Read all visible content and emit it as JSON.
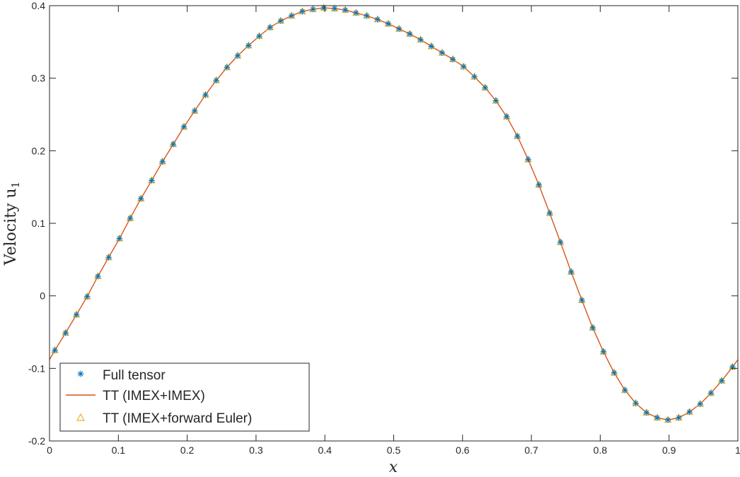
{
  "chart_data": {
    "type": "line",
    "xlabel": "x",
    "ylabel_main": "Velocity u",
    "ylabel_sub": "1",
    "xlim": [
      0,
      1
    ],
    "ylim": [
      -0.2,
      0.4
    ],
    "x_ticks": [
      0,
      0.1,
      0.2,
      0.3,
      0.4,
      0.5,
      0.6,
      0.7,
      0.8,
      0.9,
      1
    ],
    "x_tick_labels": [
      "0",
      "0.1",
      "0.2",
      "0.3",
      "0.4",
      "0.5",
      "0.6",
      "0.7",
      "0.8",
      "0.9",
      "1"
    ],
    "y_ticks": [
      -0.2,
      -0.1,
      0,
      0.1,
      0.2,
      0.3,
      0.4
    ],
    "y_tick_labels": [
      "-0.2",
      "-0.1",
      "0",
      "0.1",
      "0.2",
      "0.3",
      "0.4"
    ],
    "grid": false,
    "legend_position": "bottom-left",
    "colors": {
      "full_tensor": "#0072BD",
      "tt_imex_imex": "#D95319",
      "tt_imex_fe": "#EDB120",
      "axes": "#262626"
    },
    "x": [
      0,
      0.0078,
      0.0234,
      0.0391,
      0.0547,
      0.0703,
      0.0859,
      0.1016,
      0.1172,
      0.1328,
      0.1484,
      0.1641,
      0.1797,
      0.1953,
      0.2109,
      0.2266,
      0.2422,
      0.2578,
      0.2734,
      0.2891,
      0.3047,
      0.3203,
      0.3359,
      0.3516,
      0.3672,
      0.3828,
      0.3984,
      0.4141,
      0.4297,
      0.4453,
      0.4609,
      0.4766,
      0.4922,
      0.5078,
      0.5234,
      0.5391,
      0.5547,
      0.5703,
      0.5859,
      0.6016,
      0.6172,
      0.6328,
      0.6484,
      0.6641,
      0.6797,
      0.6953,
      0.7109,
      0.7266,
      0.7422,
      0.7578,
      0.7734,
      0.7891,
      0.8047,
      0.8203,
      0.8359,
      0.8516,
      0.8672,
      0.8828,
      0.8984,
      0.9141,
      0.9297,
      0.9453,
      0.9609,
      0.9766,
      0.9922,
      1
    ],
    "series": [
      {
        "name": "Full tensor",
        "values": [
          null,
          -0.075,
          -0.051,
          -0.026,
          -0.001,
          0.027,
          0.053,
          0.079,
          0.107,
          0.134,
          0.159,
          0.185,
          0.209,
          0.233,
          0.255,
          0.277,
          0.297,
          0.315,
          0.331,
          0.345,
          0.358,
          0.37,
          0.379,
          0.386,
          0.392,
          0.395,
          0.397,
          0.396,
          0.394,
          0.39,
          0.386,
          0.381,
          0.375,
          0.368,
          0.361,
          0.353,
          0.344,
          0.335,
          0.326,
          0.316,
          0.302,
          0.287,
          0.269,
          0.247,
          0.22,
          0.188,
          0.153,
          0.114,
          0.074,
          0.033,
          -0.006,
          -0.044,
          -0.077,
          -0.106,
          -0.13,
          -0.148,
          -0.161,
          -0.168,
          -0.171,
          -0.168,
          -0.16,
          -0.149,
          -0.134,
          -0.117,
          -0.098,
          null
        ]
      },
      {
        "name": "TT (IMEX+IMEX)",
        "values": [
          -0.088,
          -0.075,
          -0.051,
          -0.026,
          -0.001,
          0.027,
          0.053,
          0.079,
          0.107,
          0.134,
          0.159,
          0.185,
          0.209,
          0.233,
          0.255,
          0.277,
          0.297,
          0.315,
          0.331,
          0.345,
          0.358,
          0.37,
          0.379,
          0.386,
          0.392,
          0.395,
          0.397,
          0.396,
          0.394,
          0.39,
          0.386,
          0.381,
          0.375,
          0.368,
          0.361,
          0.353,
          0.344,
          0.335,
          0.326,
          0.316,
          0.302,
          0.287,
          0.269,
          0.247,
          0.22,
          0.188,
          0.153,
          0.114,
          0.074,
          0.033,
          -0.006,
          -0.044,
          -0.077,
          -0.106,
          -0.13,
          -0.148,
          -0.161,
          -0.168,
          -0.171,
          -0.168,
          -0.16,
          -0.149,
          -0.134,
          -0.117,
          -0.098,
          -0.088
        ]
      },
      {
        "name": "TT (IMEX+forward Euler)",
        "values": [
          null,
          -0.075,
          -0.051,
          -0.026,
          -0.001,
          0.027,
          0.053,
          0.079,
          0.107,
          0.134,
          0.159,
          0.185,
          0.209,
          0.233,
          0.255,
          0.277,
          0.297,
          0.315,
          0.331,
          0.345,
          0.358,
          0.37,
          0.379,
          0.386,
          0.392,
          0.395,
          0.397,
          0.396,
          0.394,
          0.39,
          0.386,
          0.381,
          0.375,
          0.368,
          0.361,
          0.353,
          0.344,
          0.335,
          0.326,
          0.316,
          0.302,
          0.287,
          0.269,
          0.247,
          0.22,
          0.188,
          0.153,
          0.114,
          0.074,
          0.033,
          -0.006,
          -0.044,
          -0.077,
          -0.106,
          -0.13,
          -0.148,
          -0.161,
          -0.168,
          -0.171,
          -0.168,
          -0.16,
          -0.149,
          -0.134,
          -0.117,
          -0.098,
          null
        ]
      }
    ]
  }
}
